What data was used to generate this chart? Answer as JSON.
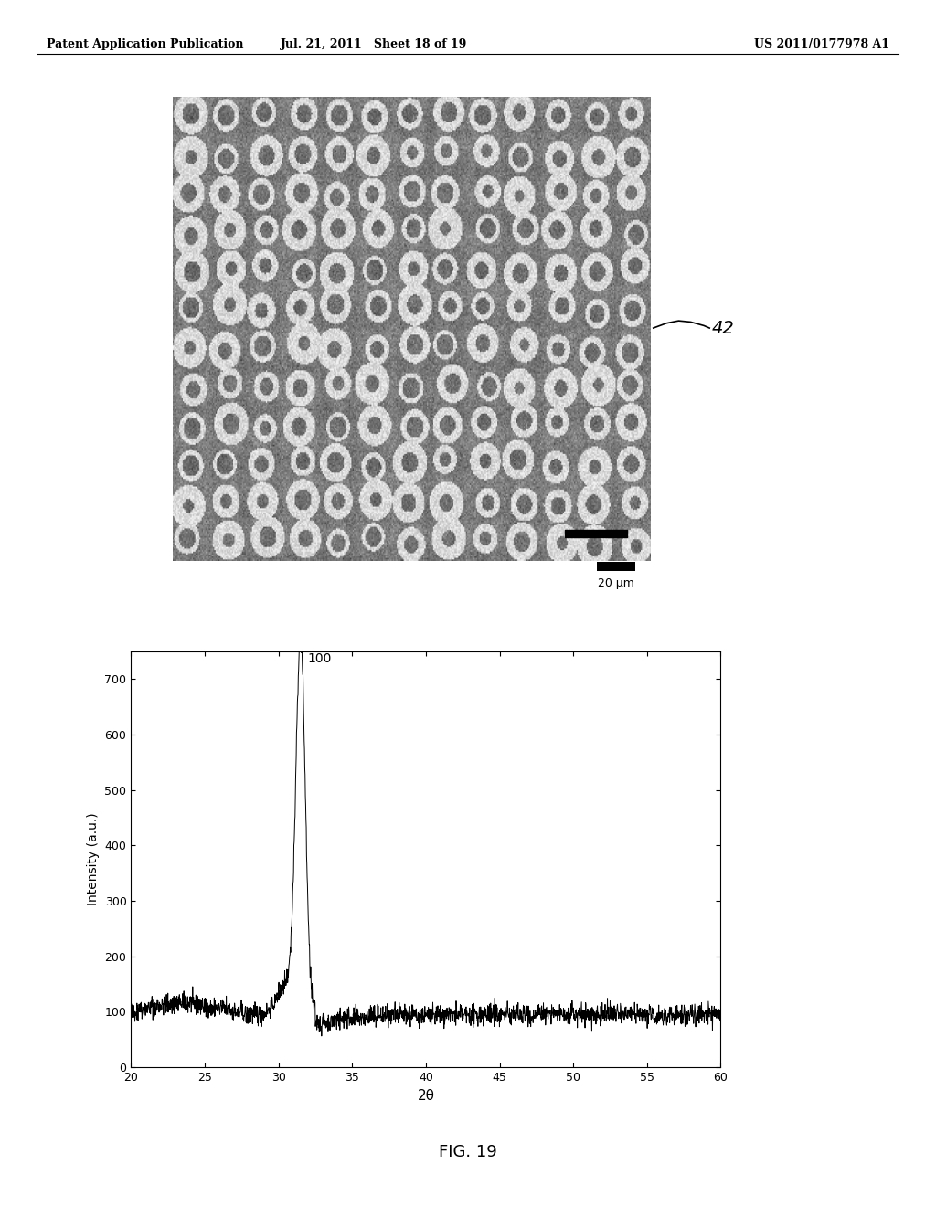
{
  "header_left": "Patent Application Publication",
  "header_mid": "Jul. 21, 2011   Sheet 18 of 19",
  "header_right": "US 2011/0177978 A1",
  "fig_caption": "FIG. 19",
  "ref_number": "42",
  "scale_bar_label": "20 μm",
  "plot_xlabel": "2θ",
  "plot_ylabel": "Intensity (a.u.)",
  "peak_label": "100",
  "xlim": [
    20,
    60
  ],
  "ylim": [
    0,
    750
  ],
  "xticks": [
    20,
    25,
    30,
    35,
    40,
    45,
    50,
    55,
    60
  ],
  "yticks": [
    0,
    100,
    200,
    300,
    400,
    500,
    600,
    700
  ],
  "bg_color": "#ffffff"
}
